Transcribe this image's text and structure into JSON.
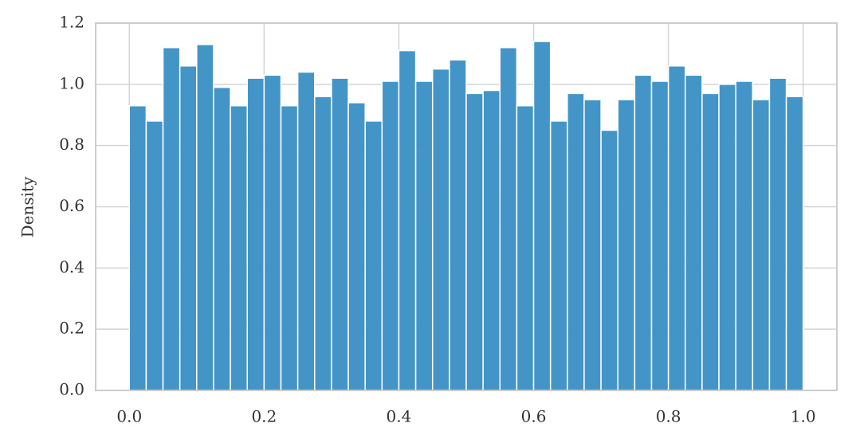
{
  "chart_data": {
    "type": "histogram",
    "y_label": "Density",
    "bins": [
      0,
      0.025,
      0.05,
      0.075,
      0.1,
      0.125,
      0.15,
      0.175,
      0.2,
      0.225,
      0.25,
      0.275,
      0.3,
      0.325,
      0.35,
      0.375,
      0.4,
      0.425,
      0.45,
      0.475,
      0.5,
      0.525,
      0.55,
      0.575,
      0.6,
      0.625,
      0.65,
      0.675,
      0.7,
      0.725,
      0.75,
      0.775,
      0.8,
      0.825,
      0.85,
      0.875,
      0.9,
      0.925,
      0.95,
      0.975,
      1.0
    ],
    "values": [
      0.93,
      0.88,
      1.12,
      1.06,
      1.13,
      0.99,
      0.93,
      1.02,
      1.03,
      0.93,
      1.04,
      0.96,
      1.02,
      0.94,
      0.88,
      1.01,
      1.11,
      1.01,
      1.05,
      1.08,
      0.97,
      0.98,
      1.12,
      0.93,
      1.14,
      0.88,
      0.97,
      0.95,
      0.85,
      0.95,
      1.03,
      1.01,
      1.06,
      1.03,
      0.97,
      1.0,
      1.01,
      0.95,
      1.02,
      0.96
    ],
    "color": "#3a8fc4",
    "xlim": [
      -0.05,
      1.05
    ],
    "ylim": [
      0,
      1.2
    ],
    "xticks": [
      {
        "value": 0,
        "label": "0.0"
      },
      {
        "value": 0.2,
        "label": "0.2"
      },
      {
        "value": 0.4,
        "label": "0.4"
      },
      {
        "value": 0.6,
        "label": "0.6"
      },
      {
        "value": 0.8,
        "label": "0.8"
      },
      {
        "value": 1.0,
        "label": "1.0"
      }
    ],
    "yticks": [
      {
        "value": 0,
        "label": "0.0"
      },
      {
        "value": 0.2,
        "label": "0.2"
      },
      {
        "value": 0.4,
        "label": "0.4"
      },
      {
        "value": 0.6,
        "label": "0.6"
      },
      {
        "value": 0.8,
        "label": "0.8"
      },
      {
        "value": 1.0,
        "label": "1.0"
      },
      {
        "value": 1.2,
        "label": "1.2"
      }
    ],
    "grid": true
  }
}
